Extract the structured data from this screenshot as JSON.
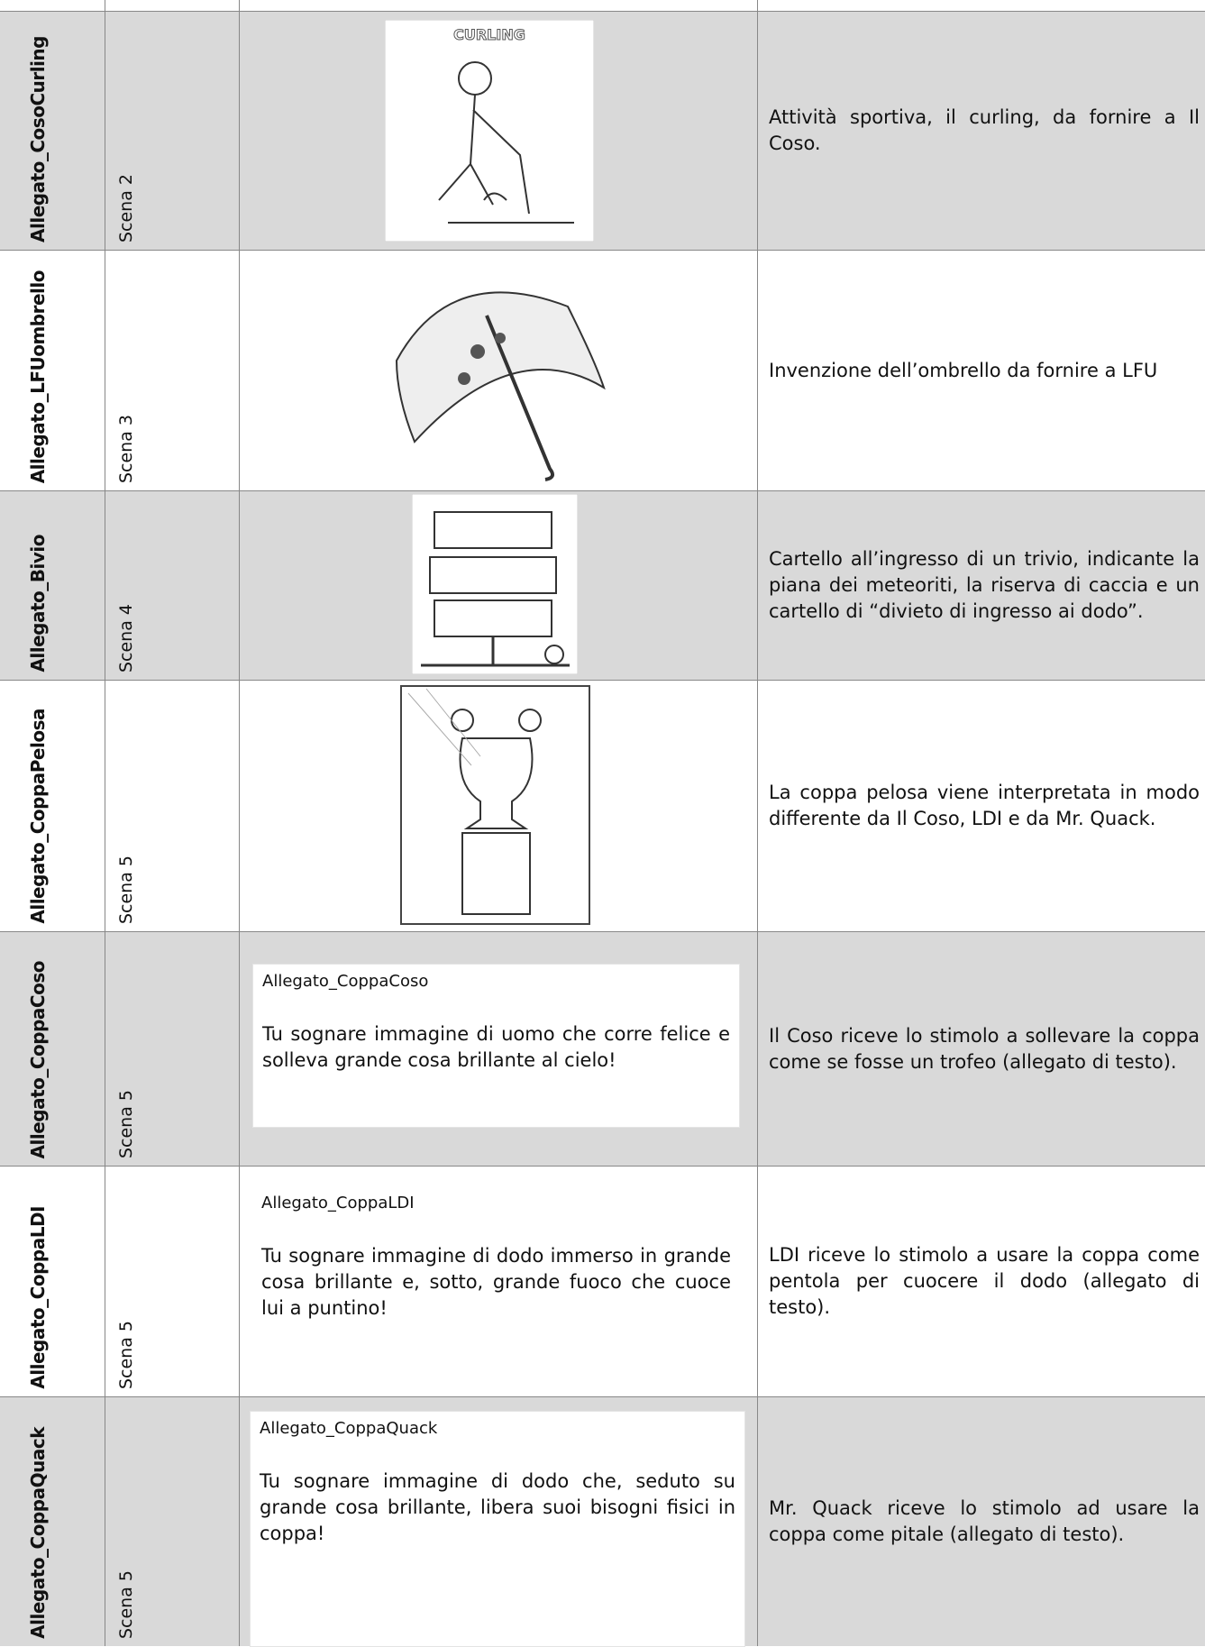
{
  "table": {
    "rows": [
      {
        "name": "Allegato_CosoCurling",
        "scene": "Scena 2",
        "image_label": "CURLING",
        "description": "Attività sportiva, il curling, da fornire a Il Coso."
      },
      {
        "name": "Allegato_LFUombrello",
        "scene": "Scena 3",
        "description": "Invenzione dell’ombrello da fornire a LFU"
      },
      {
        "name": "Allegato_Bivio",
        "scene": "Scena 4",
        "description": "Cartello all’ingresso di un trivio, indicante la piana dei meteoriti, la riserva di caccia e un cartello di “divieto di ingresso ai dodo”."
      },
      {
        "name": "Allegato_CoppaPelosa",
        "scene": "Scena 5",
        "description": "La coppa pelosa viene interpretata in modo differente da Il Coso, LDI e da Mr. Quack."
      },
      {
        "name": "Allegato_CoppaCoso",
        "scene": "Scena 5",
        "box_title": "Allegato_CoppaCoso",
        "box_text": "Tu sognare immagine di uomo che corre felice e solleva grande cosa brillante al cielo!",
        "description": "Il Coso riceve lo stimolo a sollevare la coppa come se fosse un trofeo (allegato di testo)."
      },
      {
        "name": "Allegato_CoppaLDI",
        "scene": "Scena 5",
        "box_title": "Allegato_CoppaLDI",
        "box_text": "Tu sognare immagine di dodo immerso in grande cosa brillante e, sotto, grande fuoco che cuoce lui a puntino!",
        "description": "LDI riceve lo stimolo a usare la coppa come pentola per cuocere il dodo (allegato di testo)."
      },
      {
        "name": "Allegato_CoppaQuack",
        "scene": "Scena 5",
        "box_title": "Allegato_CoppaQuack",
        "box_text": "Tu sognare immagine di dodo che, seduto su grande cosa brillante, libera suoi bisogni fisici in coppa!",
        "description": "Mr. Quack riceve lo stimolo ad usare la coppa come pitale (allegato di testo)."
      }
    ]
  }
}
